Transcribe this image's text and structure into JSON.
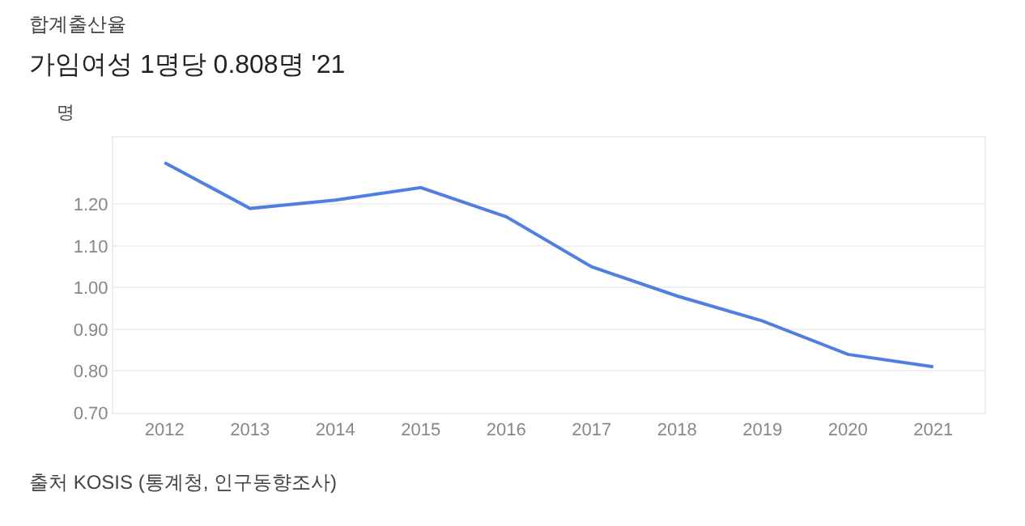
{
  "chart_data": {
    "type": "line",
    "title": "합계출산율",
    "subtitle": "가임여성 1명당 0.808명 '21",
    "ylabel": "명",
    "categories": [
      "2012",
      "2013",
      "2014",
      "2015",
      "2016",
      "2017",
      "2018",
      "2019",
      "2020",
      "2021"
    ],
    "series": [
      {
        "color": "#4f7fe0",
        "values": [
          1.3,
          1.19,
          1.21,
          1.24,
          1.17,
          1.05,
          0.98,
          0.92,
          0.84,
          0.81
        ]
      }
    ],
    "ylim": [
      0.7,
      1.36
    ],
    "yticks": [
      {
        "value": 0.7,
        "label": "0.70"
      },
      {
        "value": 0.8,
        "label": "0.80"
      },
      {
        "value": 0.9,
        "label": "0.90"
      },
      {
        "value": 1.0,
        "label": "1.00"
      },
      {
        "value": 1.1,
        "label": "1.10"
      },
      {
        "value": 1.2,
        "label": "1.20"
      }
    ],
    "grid": "y",
    "marker": "none",
    "line_style": "solid",
    "annotations": [
      "출처 KOSIS (통계청, 인구동향조사)"
    ]
  }
}
